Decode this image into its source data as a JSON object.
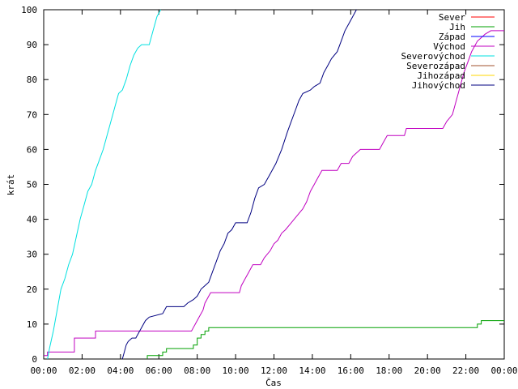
{
  "chart_data": {
    "type": "line",
    "title": "",
    "xlabel": "Čas",
    "ylabel": "krát",
    "xlim": [
      0,
      24
    ],
    "ylim": [
      0,
      100
    ],
    "x_unit": "hours",
    "x_ticks": [
      {
        "value": 0,
        "label": "00:00"
      },
      {
        "value": 2,
        "label": "02:00"
      },
      {
        "value": 4,
        "label": "04:00"
      },
      {
        "value": 6,
        "label": "06:00"
      },
      {
        "value": 8,
        "label": "08:00"
      },
      {
        "value": 10,
        "label": "10:00"
      },
      {
        "value": 12,
        "label": "12:00"
      },
      {
        "value": 14,
        "label": "14:00"
      },
      {
        "value": 16,
        "label": "16:00"
      },
      {
        "value": 18,
        "label": "18:00"
      },
      {
        "value": 20,
        "label": "20:00"
      },
      {
        "value": 22,
        "label": "22:00"
      },
      {
        "value": 24,
        "label": "00:00"
      }
    ],
    "y_ticks": [
      0,
      10,
      20,
      30,
      40,
      50,
      60,
      70,
      80,
      90,
      100
    ],
    "grid": false,
    "legend_position": "top-right",
    "series": [
      {
        "name": "Sever",
        "color": "#ff0000",
        "points": []
      },
      {
        "name": "Jih",
        "color": "#00a000",
        "points": [
          [
            5.4,
            0
          ],
          [
            5.4,
            1
          ],
          [
            6.2,
            1
          ],
          [
            6.2,
            2
          ],
          [
            6.4,
            2
          ],
          [
            6.4,
            3
          ],
          [
            7.8,
            3
          ],
          [
            7.8,
            4
          ],
          [
            8.0,
            4
          ],
          [
            8.0,
            6
          ],
          [
            8.2,
            6
          ],
          [
            8.2,
            7
          ],
          [
            8.4,
            7
          ],
          [
            8.4,
            8
          ],
          [
            8.6,
            8
          ],
          [
            8.6,
            9
          ],
          [
            22.6,
            9
          ],
          [
            22.6,
            10
          ],
          [
            22.8,
            10
          ],
          [
            22.8,
            11
          ],
          [
            24,
            11
          ]
        ]
      },
      {
        "name": "Západ",
        "color": "#0000ff",
        "points": []
      },
      {
        "name": "Východ",
        "color": "#c000c0",
        "points": [
          [
            0,
            1
          ],
          [
            0.2,
            1
          ],
          [
            0.2,
            2
          ],
          [
            1.6,
            2
          ],
          [
            1.6,
            6
          ],
          [
            2.7,
            6
          ],
          [
            2.7,
            8
          ],
          [
            7.7,
            8
          ],
          [
            7.8,
            9
          ],
          [
            7.9,
            10
          ],
          [
            8.1,
            12
          ],
          [
            8.3,
            14
          ],
          [
            8.4,
            16
          ],
          [
            8.6,
            18
          ],
          [
            8.7,
            19
          ],
          [
            10.2,
            19
          ],
          [
            10.3,
            21
          ],
          [
            10.5,
            23
          ],
          [
            10.7,
            25
          ],
          [
            10.9,
            27
          ],
          [
            11.3,
            27
          ],
          [
            11.5,
            29
          ],
          [
            11.8,
            31
          ],
          [
            12.0,
            33
          ],
          [
            12.2,
            34
          ],
          [
            12.4,
            36
          ],
          [
            12.6,
            37
          ],
          [
            12.9,
            39
          ],
          [
            13.2,
            41
          ],
          [
            13.5,
            43
          ],
          [
            13.7,
            45
          ],
          [
            13.9,
            48
          ],
          [
            14.1,
            50
          ],
          [
            14.3,
            52
          ],
          [
            14.5,
            54
          ],
          [
            15.3,
            54
          ],
          [
            15.5,
            56
          ],
          [
            15.9,
            56
          ],
          [
            16.1,
            58
          ],
          [
            16.3,
            59
          ],
          [
            16.5,
            60
          ],
          [
            17.5,
            60
          ],
          [
            17.7,
            62
          ],
          [
            17.9,
            64
          ],
          [
            18.8,
            64
          ],
          [
            18.9,
            66
          ],
          [
            20.8,
            66
          ],
          [
            21.0,
            68
          ],
          [
            21.3,
            70
          ],
          [
            21.5,
            74
          ],
          [
            21.7,
            78
          ],
          [
            21.9,
            82
          ],
          [
            22.1,
            85
          ],
          [
            22.3,
            88
          ],
          [
            22.6,
            91
          ],
          [
            22.8,
            92
          ],
          [
            23.0,
            93
          ],
          [
            23.3,
            94
          ],
          [
            24,
            94
          ]
        ]
      },
      {
        "name": "Severovýchod",
        "color": "#00e0e0",
        "points": [
          [
            0.2,
            0
          ],
          [
            0.3,
            3
          ],
          [
            0.5,
            8
          ],
          [
            0.7,
            14
          ],
          [
            0.9,
            20
          ],
          [
            1.1,
            23
          ],
          [
            1.3,
            27
          ],
          [
            1.5,
            30
          ],
          [
            1.7,
            35
          ],
          [
            1.9,
            40
          ],
          [
            2.1,
            44
          ],
          [
            2.3,
            48
          ],
          [
            2.5,
            50
          ],
          [
            2.7,
            54
          ],
          [
            2.9,
            57
          ],
          [
            3.1,
            60
          ],
          [
            3.3,
            64
          ],
          [
            3.5,
            68
          ],
          [
            3.7,
            72
          ],
          [
            3.9,
            76
          ],
          [
            4.1,
            77
          ],
          [
            4.3,
            80
          ],
          [
            4.5,
            84
          ],
          [
            4.7,
            87
          ],
          [
            4.9,
            89
          ],
          [
            5.1,
            90
          ],
          [
            5.5,
            90
          ],
          [
            5.7,
            94
          ],
          [
            5.9,
            98
          ],
          [
            6.1,
            100
          ]
        ]
      },
      {
        "name": "Severozápad",
        "color": "#a0522d",
        "points": []
      },
      {
        "name": "Jihozápad",
        "color": "#ffd700",
        "points": []
      },
      {
        "name": "Jihovýchod",
        "color": "#000080",
        "points": [
          [
            4.1,
            0
          ],
          [
            4.2,
            2
          ],
          [
            4.3,
            4
          ],
          [
            4.4,
            5
          ],
          [
            4.6,
            6
          ],
          [
            4.8,
            6
          ],
          [
            4.9,
            7
          ],
          [
            5.1,
            9
          ],
          [
            5.3,
            11
          ],
          [
            5.5,
            12
          ],
          [
            6.2,
            13
          ],
          [
            6.4,
            15
          ],
          [
            7.3,
            15
          ],
          [
            7.5,
            16
          ],
          [
            7.8,
            17
          ],
          [
            8.0,
            18
          ],
          [
            8.2,
            20
          ],
          [
            8.4,
            21
          ],
          [
            8.6,
            22
          ],
          [
            8.8,
            25
          ],
          [
            9.0,
            28
          ],
          [
            9.2,
            31
          ],
          [
            9.4,
            33
          ],
          [
            9.6,
            36
          ],
          [
            9.8,
            37
          ],
          [
            10.0,
            39
          ],
          [
            10.6,
            39
          ],
          [
            10.8,
            42
          ],
          [
            11.0,
            46
          ],
          [
            11.2,
            49
          ],
          [
            11.5,
            50
          ],
          [
            11.8,
            53
          ],
          [
            12.1,
            56
          ],
          [
            12.4,
            60
          ],
          [
            12.7,
            65
          ],
          [
            12.9,
            68
          ],
          [
            13.1,
            71
          ],
          [
            13.3,
            74
          ],
          [
            13.5,
            76
          ],
          [
            13.9,
            77
          ],
          [
            14.1,
            78
          ],
          [
            14.4,
            79
          ],
          [
            14.6,
            82
          ],
          [
            14.8,
            84
          ],
          [
            15.0,
            86
          ],
          [
            15.3,
            88
          ],
          [
            15.5,
            91
          ],
          [
            15.7,
            94
          ],
          [
            15.9,
            96
          ],
          [
            16.1,
            98
          ],
          [
            16.3,
            100
          ]
        ]
      }
    ]
  }
}
